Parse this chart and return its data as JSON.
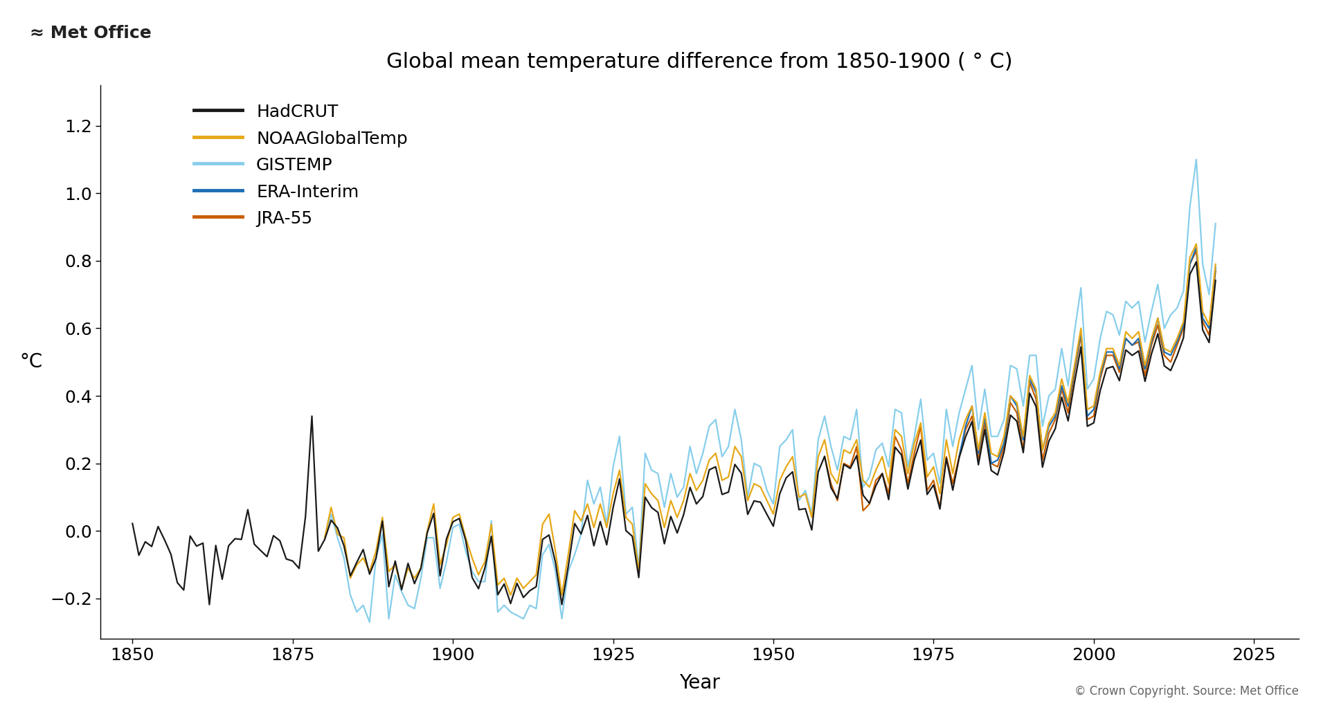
{
  "title": "Global mean temperature difference from 1850-1900 ( ° C)",
  "xlabel": "Year",
  "ylabel": "°C",
  "ylim": [
    -0.32,
    1.32
  ],
  "xlim": [
    1845,
    2032
  ],
  "yticks": [
    -0.2,
    0.0,
    0.2,
    0.4,
    0.6,
    0.8,
    1.0,
    1.2
  ],
  "xticks": [
    1850,
    1875,
    1900,
    1925,
    1950,
    1975,
    2000,
    2025
  ],
  "background_color": "#ffffff",
  "copyright_text": "© Crown Copyright. Source: Met Office",
  "series": {
    "HadCRUT": {
      "color": "#1a1a1a",
      "linewidth": 1.6,
      "zorder": 5,
      "years": [
        1850,
        1851,
        1852,
        1853,
        1854,
        1855,
        1856,
        1857,
        1858,
        1859,
        1860,
        1861,
        1862,
        1863,
        1864,
        1865,
        1866,
        1867,
        1868,
        1869,
        1870,
        1871,
        1872,
        1873,
        1874,
        1875,
        1876,
        1877,
        1878,
        1879,
        1880,
        1881,
        1882,
        1883,
        1884,
        1885,
        1886,
        1887,
        1888,
        1889,
        1890,
        1891,
        1892,
        1893,
        1894,
        1895,
        1896,
        1897,
        1898,
        1899,
        1900,
        1901,
        1902,
        1903,
        1904,
        1905,
        1906,
        1907,
        1908,
        1909,
        1910,
        1911,
        1912,
        1913,
        1914,
        1915,
        1916,
        1917,
        1918,
        1919,
        1920,
        1921,
        1922,
        1923,
        1924,
        1925,
        1926,
        1927,
        1928,
        1929,
        1930,
        1931,
        1932,
        1933,
        1934,
        1935,
        1936,
        1937,
        1938,
        1939,
        1940,
        1941,
        1942,
        1943,
        1944,
        1945,
        1946,
        1947,
        1948,
        1949,
        1950,
        1951,
        1952,
        1953,
        1954,
        1955,
        1956,
        1957,
        1958,
        1959,
        1960,
        1961,
        1962,
        1963,
        1964,
        1965,
        1966,
        1967,
        1968,
        1969,
        1970,
        1971,
        1972,
        1973,
        1974,
        1975,
        1976,
        1977,
        1978,
        1979,
        1980,
        1981,
        1982,
        1983,
        1984,
        1985,
        1986,
        1987,
        1988,
        1989,
        1990,
        1991,
        1992,
        1993,
        1994,
        1995,
        1996,
        1997,
        1998,
        1999,
        2000,
        2001,
        2002,
        2003,
        2004,
        2005,
        2006,
        2007,
        2008,
        2009,
        2010,
        2011,
        2012,
        2013,
        2014,
        2015,
        2016,
        2017,
        2018,
        2019
      ],
      "values": [
        0.022,
        -0.072,
        -0.032,
        -0.046,
        0.013,
        -0.026,
        -0.069,
        -0.153,
        -0.175,
        -0.015,
        -0.045,
        -0.036,
        -0.218,
        -0.043,
        -0.143,
        -0.044,
        -0.023,
        -0.025,
        0.063,
        -0.039,
        -0.058,
        -0.076,
        -0.014,
        -0.029,
        -0.083,
        -0.089,
        -0.111,
        0.043,
        0.34,
        -0.06,
        -0.025,
        0.032,
        0.009,
        -0.044,
        -0.133,
        -0.093,
        -0.055,
        -0.128,
        -0.081,
        0.029,
        -0.165,
        -0.089,
        -0.174,
        -0.096,
        -0.156,
        -0.111,
        -0.005,
        0.052,
        -0.133,
        -0.023,
        0.027,
        0.037,
        -0.028,
        -0.138,
        -0.171,
        -0.109,
        -0.016,
        -0.189,
        -0.157,
        -0.215,
        -0.155,
        -0.197,
        -0.177,
        -0.165,
        -0.025,
        -0.012,
        -0.093,
        -0.218,
        -0.105,
        0.022,
        -0.009,
        0.046,
        -0.044,
        0.028,
        -0.041,
        0.069,
        0.154,
        0.001,
        -0.016,
        -0.138,
        0.1,
        0.069,
        0.055,
        -0.038,
        0.043,
        -0.006,
        0.048,
        0.129,
        0.08,
        0.102,
        0.181,
        0.19,
        0.108,
        0.115,
        0.197,
        0.171,
        0.049,
        0.089,
        0.085,
        0.049,
        0.014,
        0.11,
        0.157,
        0.175,
        0.063,
        0.066,
        0.003,
        0.175,
        0.221,
        0.128,
        0.096,
        0.197,
        0.185,
        0.223,
        0.106,
        0.082,
        0.134,
        0.17,
        0.093,
        0.248,
        0.225,
        0.124,
        0.211,
        0.269,
        0.108,
        0.136,
        0.065,
        0.215,
        0.121,
        0.217,
        0.279,
        0.324,
        0.196,
        0.3,
        0.179,
        0.166,
        0.234,
        0.343,
        0.325,
        0.232,
        0.408,
        0.368,
        0.189,
        0.266,
        0.303,
        0.396,
        0.326,
        0.44,
        0.545,
        0.31,
        0.32,
        0.415,
        0.481,
        0.487,
        0.445,
        0.536,
        0.52,
        0.533,
        0.443,
        0.524,
        0.584,
        0.489,
        0.475,
        0.519,
        0.572,
        0.76,
        0.797,
        0.595,
        0.558,
        0.742
      ]
    },
    "NOAAGlobalTemp": {
      "color": "#e6a817",
      "linewidth": 1.6,
      "zorder": 4,
      "years": [
        1880,
        1881,
        1882,
        1883,
        1884,
        1885,
        1886,
        1887,
        1888,
        1889,
        1890,
        1891,
        1892,
        1893,
        1894,
        1895,
        1896,
        1897,
        1898,
        1899,
        1900,
        1901,
        1902,
        1903,
        1904,
        1905,
        1906,
        1907,
        1908,
        1909,
        1910,
        1911,
        1912,
        1913,
        1914,
        1915,
        1916,
        1917,
        1918,
        1919,
        1920,
        1921,
        1922,
        1923,
        1924,
        1925,
        1926,
        1927,
        1928,
        1929,
        1930,
        1931,
        1932,
        1933,
        1934,
        1935,
        1936,
        1937,
        1938,
        1939,
        1940,
        1941,
        1942,
        1943,
        1944,
        1945,
        1946,
        1947,
        1948,
        1949,
        1950,
        1951,
        1952,
        1953,
        1954,
        1955,
        1956,
        1957,
        1958,
        1959,
        1960,
        1961,
        1962,
        1963,
        1964,
        1965,
        1966,
        1967,
        1968,
        1969,
        1970,
        1971,
        1972,
        1973,
        1974,
        1975,
        1976,
        1977,
        1978,
        1979,
        1980,
        1981,
        1982,
        1983,
        1984,
        1985,
        1986,
        1987,
        1988,
        1989,
        1990,
        1991,
        1992,
        1993,
        1994,
        1995,
        1996,
        1997,
        1998,
        1999,
        2000,
        2001,
        2002,
        2003,
        2004,
        2005,
        2006,
        2007,
        2008,
        2009,
        2010,
        2011,
        2012,
        2013,
        2014,
        2015,
        2016,
        2017,
        2018,
        2019
      ],
      "values": [
        -0.02,
        0.07,
        -0.01,
        -0.02,
        -0.14,
        -0.1,
        -0.08,
        -0.12,
        -0.06,
        0.04,
        -0.12,
        -0.1,
        -0.17,
        -0.11,
        -0.14,
        -0.11,
        0.0,
        0.08,
        -0.1,
        -0.04,
        0.04,
        0.05,
        -0.02,
        -0.08,
        -0.13,
        -0.09,
        0.02,
        -0.16,
        -0.14,
        -0.19,
        -0.14,
        -0.17,
        -0.15,
        -0.13,
        0.02,
        0.05,
        -0.06,
        -0.19,
        -0.07,
        0.06,
        0.03,
        0.08,
        0.01,
        0.08,
        0.01,
        0.11,
        0.18,
        0.04,
        0.02,
        -0.12,
        0.14,
        0.11,
        0.09,
        0.01,
        0.09,
        0.04,
        0.09,
        0.17,
        0.12,
        0.15,
        0.21,
        0.23,
        0.15,
        0.16,
        0.25,
        0.22,
        0.09,
        0.14,
        0.13,
        0.09,
        0.05,
        0.15,
        0.19,
        0.22,
        0.1,
        0.11,
        0.04,
        0.22,
        0.27,
        0.17,
        0.14,
        0.24,
        0.23,
        0.27,
        0.15,
        0.13,
        0.18,
        0.22,
        0.14,
        0.3,
        0.28,
        0.17,
        0.26,
        0.32,
        0.16,
        0.19,
        0.11,
        0.27,
        0.17,
        0.27,
        0.33,
        0.37,
        0.24,
        0.35,
        0.23,
        0.22,
        0.28,
        0.4,
        0.38,
        0.28,
        0.46,
        0.42,
        0.24,
        0.32,
        0.35,
        0.45,
        0.38,
        0.49,
        0.6,
        0.36,
        0.37,
        0.47,
        0.54,
        0.54,
        0.49,
        0.59,
        0.57,
        0.59,
        0.49,
        0.57,
        0.63,
        0.54,
        0.53,
        0.57,
        0.62,
        0.81,
        0.85,
        0.65,
        0.61,
        0.79
      ]
    },
    "GISTEMP": {
      "color": "#87ceeb",
      "linewidth": 1.6,
      "zorder": 3,
      "years": [
        1880,
        1881,
        1882,
        1883,
        1884,
        1885,
        1886,
        1887,
        1888,
        1889,
        1890,
        1891,
        1892,
        1893,
        1894,
        1895,
        1896,
        1897,
        1898,
        1899,
        1900,
        1901,
        1902,
        1903,
        1904,
        1905,
        1906,
        1907,
        1908,
        1909,
        1910,
        1911,
        1912,
        1913,
        1914,
        1915,
        1916,
        1917,
        1918,
        1919,
        1920,
        1921,
        1922,
        1923,
        1924,
        1925,
        1926,
        1927,
        1928,
        1929,
        1930,
        1931,
        1932,
        1933,
        1934,
        1935,
        1936,
        1937,
        1938,
        1939,
        1940,
        1941,
        1942,
        1943,
        1944,
        1945,
        1946,
        1947,
        1948,
        1949,
        1950,
        1951,
        1952,
        1953,
        1954,
        1955,
        1956,
        1957,
        1958,
        1959,
        1960,
        1961,
        1962,
        1963,
        1964,
        1965,
        1966,
        1967,
        1968,
        1969,
        1970,
        1971,
        1972,
        1973,
        1974,
        1975,
        1976,
        1977,
        1978,
        1979,
        1980,
        1981,
        1982,
        1983,
        1984,
        1985,
        1986,
        1987,
        1988,
        1989,
        1990,
        1991,
        1992,
        1993,
        1994,
        1995,
        1996,
        1997,
        1998,
        1999,
        2000,
        2001,
        2002,
        2003,
        2004,
        2005,
        2006,
        2007,
        2008,
        2009,
        2010,
        2011,
        2012,
        2013,
        2014,
        2015,
        2016,
        2017,
        2018,
        2019
      ],
      "values": [
        -0.02,
        0.05,
        -0.02,
        -0.08,
        -0.19,
        -0.24,
        -0.22,
        -0.27,
        -0.08,
        -0.01,
        -0.26,
        -0.13,
        -0.18,
        -0.22,
        -0.23,
        -0.14,
        -0.02,
        -0.02,
        -0.17,
        -0.09,
        0.01,
        0.02,
        -0.06,
        -0.12,
        -0.15,
        -0.15,
        0.03,
        -0.24,
        -0.22,
        -0.24,
        -0.25,
        -0.26,
        -0.22,
        -0.23,
        -0.07,
        -0.04,
        -0.12,
        -0.26,
        -0.12,
        -0.07,
        -0.01,
        0.15,
        0.08,
        0.13,
        0.02,
        0.19,
        0.28,
        0.05,
        0.07,
        -0.11,
        0.23,
        0.18,
        0.17,
        0.07,
        0.17,
        0.1,
        0.13,
        0.25,
        0.17,
        0.23,
        0.31,
        0.33,
        0.22,
        0.25,
        0.36,
        0.27,
        0.1,
        0.2,
        0.19,
        0.12,
        0.08,
        0.25,
        0.27,
        0.3,
        0.09,
        0.12,
        0.05,
        0.27,
        0.34,
        0.25,
        0.18,
        0.28,
        0.27,
        0.36,
        0.13,
        0.16,
        0.24,
        0.26,
        0.19,
        0.36,
        0.35,
        0.19,
        0.28,
        0.39,
        0.21,
        0.23,
        0.14,
        0.36,
        0.25,
        0.35,
        0.42,
        0.49,
        0.3,
        0.42,
        0.28,
        0.28,
        0.33,
        0.49,
        0.48,
        0.37,
        0.52,
        0.52,
        0.31,
        0.4,
        0.42,
        0.54,
        0.43,
        0.59,
        0.72,
        0.42,
        0.45,
        0.57,
        0.65,
        0.64,
        0.58,
        0.68,
        0.66,
        0.68,
        0.56,
        0.65,
        0.73,
        0.6,
        0.64,
        0.66,
        0.71,
        0.96,
        1.1,
        0.79,
        0.7,
        0.91
      ]
    },
    "ERA-Interim": {
      "color": "#1e6eb5",
      "linewidth": 1.6,
      "zorder": 2,
      "years": [
        1979,
        1980,
        1981,
        1982,
        1983,
        1984,
        1985,
        1986,
        1987,
        1988,
        1989,
        1990,
        1991,
        1992,
        1993,
        1994,
        1995,
        1996,
        1997,
        1998,
        1999,
        2000,
        2001,
        2002,
        2003,
        2004,
        2005,
        2006,
        2007,
        2008,
        2009,
        2010,
        2011,
        2012,
        2013,
        2014,
        2015,
        2016,
        2017,
        2018,
        2019
      ],
      "values": [
        0.22,
        0.31,
        0.37,
        0.23,
        0.34,
        0.2,
        0.21,
        0.26,
        0.4,
        0.37,
        0.27,
        0.45,
        0.41,
        0.24,
        0.31,
        0.34,
        0.43,
        0.37,
        0.48,
        0.59,
        0.34,
        0.36,
        0.46,
        0.53,
        0.53,
        0.48,
        0.57,
        0.55,
        0.57,
        0.48,
        0.56,
        0.63,
        0.53,
        0.52,
        0.56,
        0.61,
        0.79,
        0.84,
        0.63,
        0.6,
        0.78
      ]
    },
    "JRA-55": {
      "color": "#c85e00",
      "linewidth": 1.6,
      "zorder": 1,
      "years": [
        1958,
        1959,
        1960,
        1961,
        1962,
        1963,
        1964,
        1965,
        1966,
        1967,
        1968,
        1969,
        1970,
        1971,
        1972,
        1973,
        1974,
        1975,
        1976,
        1977,
        1978,
        1979,
        1980,
        1981,
        1982,
        1983,
        1984,
        1985,
        1986,
        1987,
        1988,
        1989,
        1990,
        1991,
        1992,
        1993,
        1994,
        1995,
        1996,
        1997,
        1998,
        1999,
        2000,
        2001,
        2002,
        2003,
        2004,
        2005,
        2006,
        2007,
        2008,
        2009,
        2010,
        2011,
        2012,
        2013,
        2014,
        2015,
        2016,
        2017,
        2018,
        2019
      ],
      "values": [
        0.22,
        0.14,
        0.09,
        0.2,
        0.19,
        0.25,
        0.06,
        0.08,
        0.15,
        0.17,
        0.11,
        0.28,
        0.24,
        0.14,
        0.23,
        0.31,
        0.12,
        0.15,
        0.07,
        0.22,
        0.14,
        0.22,
        0.3,
        0.34,
        0.21,
        0.32,
        0.2,
        0.19,
        0.25,
        0.38,
        0.35,
        0.24,
        0.44,
        0.39,
        0.21,
        0.29,
        0.33,
        0.42,
        0.35,
        0.47,
        0.58,
        0.33,
        0.34,
        0.45,
        0.52,
        0.52,
        0.47,
        0.57,
        0.55,
        0.56,
        0.46,
        0.55,
        0.61,
        0.52,
        0.5,
        0.55,
        0.6,
        0.79,
        0.83,
        0.62,
        0.58,
        0.77
      ]
    }
  }
}
